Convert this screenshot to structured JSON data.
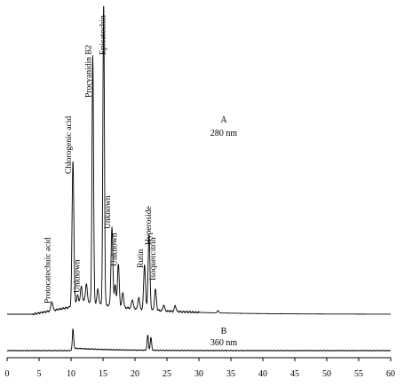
{
  "chart_data": {
    "type": "line",
    "title": "",
    "xlabel": "",
    "ylabel": "",
    "xlim": [
      0,
      60
    ],
    "x_ticks": [
      0,
      5,
      10,
      15,
      20,
      25,
      30,
      35,
      40,
      45,
      50,
      55,
      60
    ],
    "grid": false,
    "legend": "none",
    "traces": [
      {
        "id": "A",
        "label": "A",
        "wavelength": "280 nm",
        "peaks": [
          {
            "name": "Protocatechuic acid",
            "rt": 7.0,
            "height": 0.03
          },
          {
            "name": "Chlorogenic acid",
            "rt": 10.3,
            "height": 0.48
          },
          {
            "name": "Unknown",
            "rt": 11.6,
            "height": 0.05
          },
          {
            "name": "Procyanidin B2",
            "rt": 13.4,
            "height": 0.82
          },
          {
            "name": "Epicatechin",
            "rt": 15.1,
            "height": 1.0
          },
          {
            "name": "Unknown",
            "rt": 16.4,
            "height": 0.26
          },
          {
            "name": "Unknown",
            "rt": 17.4,
            "height": 0.14
          },
          {
            "name": "Rutin",
            "rt": 21.5,
            "height": 0.15
          },
          {
            "name": "Hyperoside",
            "rt": 22.2,
            "height": 0.25
          },
          {
            "name": "Isoquercitrin",
            "rt": 23.2,
            "height": 0.07
          }
        ]
      },
      {
        "id": "B",
        "label": "B",
        "wavelength": "360 nm",
        "peaks": [
          {
            "rt": 10.3,
            "height": 0.09
          },
          {
            "rt": 22.0,
            "height": 0.07
          },
          {
            "rt": 22.5,
            "height": 0.06
          }
        ]
      }
    ]
  }
}
